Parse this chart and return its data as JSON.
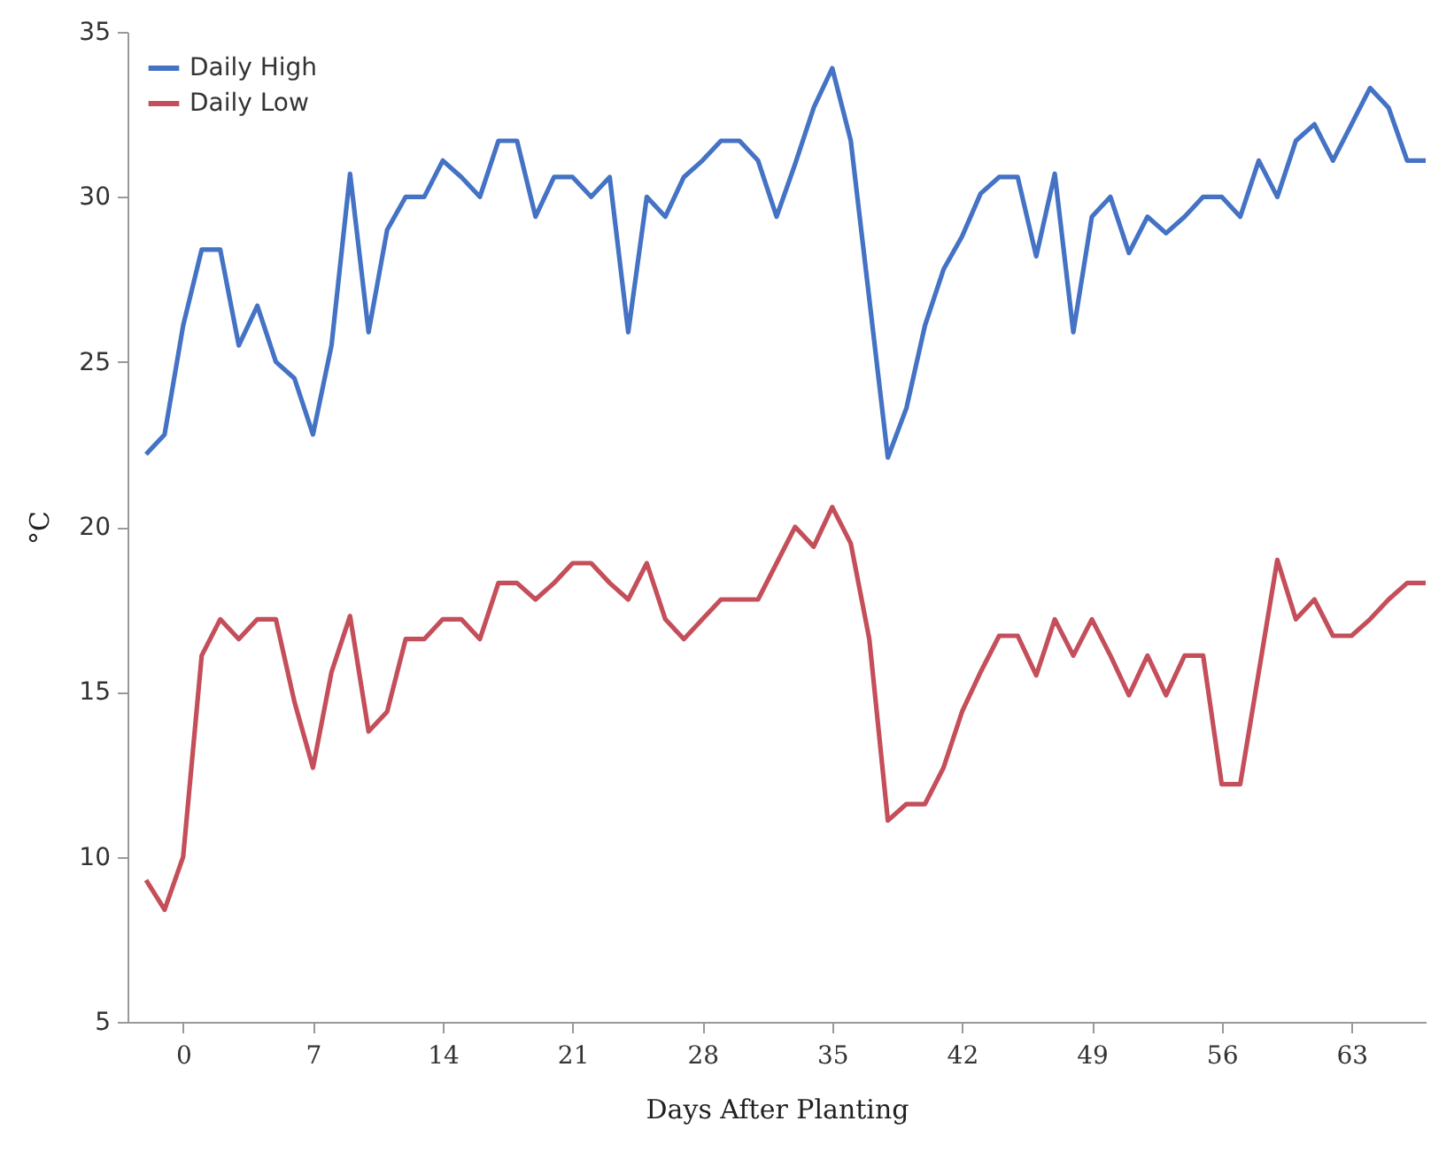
{
  "chart_data": {
    "type": "line",
    "xlabel": "Days After Planting",
    "ylabel": "°C",
    "x": [
      -2,
      -1,
      0,
      1,
      2,
      3,
      4,
      5,
      6,
      7,
      8,
      9,
      10,
      11,
      12,
      13,
      14,
      15,
      16,
      17,
      18,
      19,
      20,
      21,
      22,
      23,
      24,
      25,
      26,
      27,
      28,
      29,
      30,
      31,
      32,
      33,
      34,
      35,
      36,
      37,
      38,
      39,
      40,
      41,
      42,
      43,
      44,
      45,
      46,
      47,
      48,
      49,
      50,
      51,
      52,
      53,
      54,
      55,
      56,
      57,
      58,
      59,
      60,
      61,
      62,
      63,
      64,
      65,
      66,
      67
    ],
    "series": [
      {
        "name": "Daily High",
        "color": "#4472c4",
        "values": [
          22.2,
          22.8,
          26.1,
          28.4,
          28.4,
          25.5,
          26.7,
          25.0,
          24.5,
          22.8,
          25.5,
          30.7,
          25.9,
          29.0,
          30.0,
          30.0,
          31.1,
          30.6,
          30.0,
          31.7,
          31.7,
          29.4,
          30.6,
          30.6,
          30.0,
          30.6,
          25.9,
          30.0,
          29.4,
          30.6,
          31.1,
          31.7,
          31.7,
          31.1,
          29.4,
          31.0,
          32.7,
          33.9,
          31.7,
          26.9,
          22.1,
          23.6,
          26.1,
          27.8,
          28.8,
          30.1,
          30.6,
          30.6,
          28.2,
          30.7,
          25.9,
          29.4,
          30.0,
          28.3,
          29.4,
          28.9,
          29.4,
          30.0,
          30.0,
          29.4,
          31.1,
          30.0,
          31.7,
          32.2,
          31.1,
          32.2,
          33.3,
          32.7,
          31.1,
          31.1
        ]
      },
      {
        "name": "Daily Low",
        "color": "#c44e5a",
        "values": [
          9.3,
          8.4,
          10.0,
          16.1,
          17.2,
          16.6,
          17.2,
          17.2,
          14.7,
          12.7,
          15.6,
          17.3,
          13.8,
          14.4,
          16.6,
          16.6,
          17.2,
          17.2,
          16.6,
          18.3,
          18.3,
          17.8,
          18.3,
          18.9,
          18.9,
          18.3,
          17.8,
          18.9,
          17.2,
          16.6,
          17.2,
          17.8,
          17.8,
          17.8,
          18.9,
          20.0,
          19.4,
          20.6,
          19.5,
          16.6,
          11.1,
          11.6,
          11.6,
          12.7,
          14.4,
          15.6,
          16.7,
          16.7,
          15.5,
          17.2,
          16.1,
          17.2,
          16.1,
          14.9,
          16.1,
          14.9,
          16.1,
          16.1,
          12.2,
          12.2,
          15.6,
          19.0,
          17.2,
          17.8,
          16.7,
          16.7,
          17.2,
          17.8,
          18.3,
          18.3
        ]
      }
    ],
    "xlim": [
      -3,
      67
    ],
    "xticks": [
      0,
      7,
      14,
      21,
      28,
      35,
      42,
      49,
      56,
      63
    ],
    "ylim": [
      5,
      35
    ],
    "yticks": [
      5,
      10,
      15,
      20,
      25,
      30,
      35
    ],
    "grid": false,
    "legend": "top left",
    "marker": "none",
    "line_style": "solid"
  }
}
